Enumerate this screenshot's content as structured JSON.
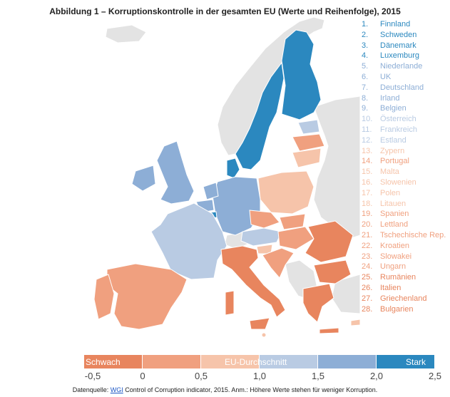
{
  "title": "Abbildung 1 – Korruptionskontrolle in der gesamten EU (Werte und Reihenfolge), 2015",
  "ranking": [
    {
      "rank": "1.",
      "country": "Finnland"
    },
    {
      "rank": "2.",
      "country": "Schweden"
    },
    {
      "rank": "3.",
      "country": "Dänemark"
    },
    {
      "rank": "4.",
      "country": "Luxemburg"
    },
    {
      "rank": "5.",
      "country": "Niederlande"
    },
    {
      "rank": "6.",
      "country": "UK"
    },
    {
      "rank": "7.",
      "country": "Deutschland"
    },
    {
      "rank": "8.",
      "country": "Irland"
    },
    {
      "rank": "9.",
      "country": "Belgien"
    },
    {
      "rank": "10.",
      "country": "Österreich"
    },
    {
      "rank": "11.",
      "country": "Frankreich"
    },
    {
      "rank": "12.",
      "country": "Estland"
    },
    {
      "rank": "13.",
      "country": "Zypern"
    },
    {
      "rank": "14.",
      "country": "Portugal"
    },
    {
      "rank": "15.",
      "country": "Malta"
    },
    {
      "rank": "16.",
      "country": "Slowenien"
    },
    {
      "rank": "17.",
      "country": "Polen"
    },
    {
      "rank": "18.",
      "country": "Litauen"
    },
    {
      "rank": "19.",
      "country": "Spanien"
    },
    {
      "rank": "20.",
      "country": "Lettland"
    },
    {
      "rank": "21.",
      "country": "Tschechische Rep."
    },
    {
      "rank": "22.",
      "country": "Kroatien"
    },
    {
      "rank": "23.",
      "country": "Slowakei"
    },
    {
      "rank": "24.",
      "country": "Ungarn"
    },
    {
      "rank": "25.",
      "country": "Rumänien"
    },
    {
      "rank": "26.",
      "country": "Italien"
    },
    {
      "rank": "27.",
      "country": "Griechenland"
    },
    {
      "rank": "28.",
      "country": "Bulgarien"
    }
  ],
  "legend": {
    "weak_label": "Schwach",
    "average_label": "EU-Durchschnitt",
    "strong_label": "Stark",
    "ticks": [
      "-0,5",
      "0",
      "0,5",
      "1,0",
      "1,5",
      "2,0",
      "2,5"
    ],
    "class_colors": [
      "#e8855e",
      "#f0a07f",
      "#f6c4aa",
      "#b9cbe3",
      "#8daed6",
      "#2b88bf"
    ]
  },
  "source": {
    "prefix": "Datenquelle: ",
    "link": "WGI",
    "suffix": " Control of Corruption indicator, 2015. Anm.: Höhere Werte stehen für weniger Korruption."
  }
}
